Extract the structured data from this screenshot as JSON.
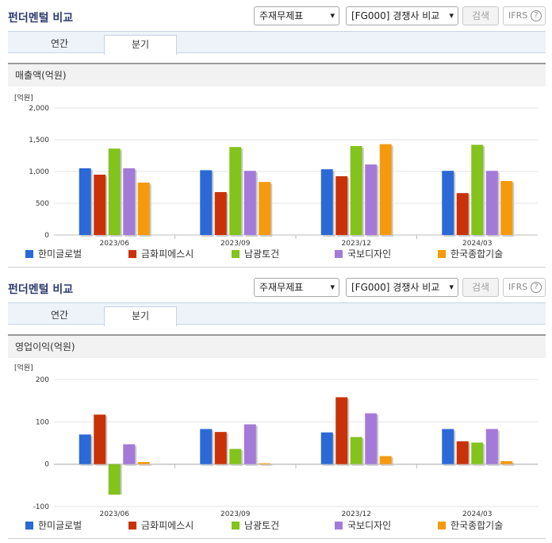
{
  "series_colors": [
    "#2a69d6",
    "#c93208",
    "#82c31c",
    "#a47ad8",
    "#f69a0d"
  ],
  "panels": [
    {
      "title": "펀더멘털 비교",
      "select1": "주재무제표",
      "select2": "[FG000] 경쟁사 비교",
      "search_label": "검색",
      "ifrs_label": "IFRS",
      "ifrs_help": "?",
      "tabs": [
        "연간",
        "분기"
      ],
      "active_tab": "분기",
      "section_title": "매출액(억원)",
      "chart_data": {
        "type": "bar",
        "unit_label": "[억원]",
        "categories": [
          "2023/06",
          "2023/09",
          "2023/12",
          "2024/03"
        ],
        "ylim": [
          0,
          2000
        ],
        "yticks": [
          "2,000",
          "1,500",
          "1,000",
          "500",
          "0"
        ],
        "ytick_values": [
          2000,
          1500,
          1000,
          500,
          0
        ],
        "series": [
          {
            "name": "한미글로벌",
            "values": [
              1050,
              1020,
              1035,
              1010
            ]
          },
          {
            "name": "금화피에스시",
            "values": [
              950,
              675,
              925,
              660
            ]
          },
          {
            "name": "남광토건",
            "values": [
              1360,
              1385,
              1400,
              1420
            ]
          },
          {
            "name": "국보디자인",
            "values": [
              1050,
              1010,
              1110,
              1010
            ]
          },
          {
            "name": "한국종합기술",
            "values": [
              825,
              835,
              1430,
              850
            ]
          }
        ]
      }
    },
    {
      "title": "펀더멘털 비교",
      "select1": "주재무제표",
      "select2": "[FG000] 경쟁사 비교",
      "search_label": "검색",
      "ifrs_label": "IFRS",
      "ifrs_help": "?",
      "tabs": [
        "연간",
        "분기"
      ],
      "active_tab": "분기",
      "section_title": "영업이익(억원)",
      "chart_data": {
        "type": "bar",
        "unit_label": "[억원]",
        "categories": [
          "2023/06",
          "2023/09",
          "2023/12",
          "2024/03"
        ],
        "ylim": [
          -100,
          200
        ],
        "yticks": [
          "200",
          "100",
          "0",
          "-100"
        ],
        "ytick_values": [
          200,
          100,
          0,
          -100
        ],
        "series": [
          {
            "name": "한미글로벌",
            "values": [
              70,
              83,
              75,
              83
            ]
          },
          {
            "name": "금화피에스시",
            "values": [
              117,
              76,
              158,
              54
            ]
          },
          {
            "name": "남광토건",
            "values": [
              -72,
              36,
              64,
              51
            ]
          },
          {
            "name": "국보디자인",
            "values": [
              47,
              94,
              120,
              83
            ]
          },
          {
            "name": "한국종합기술",
            "values": [
              5,
              2,
              19,
              7
            ]
          }
        ]
      }
    }
  ]
}
